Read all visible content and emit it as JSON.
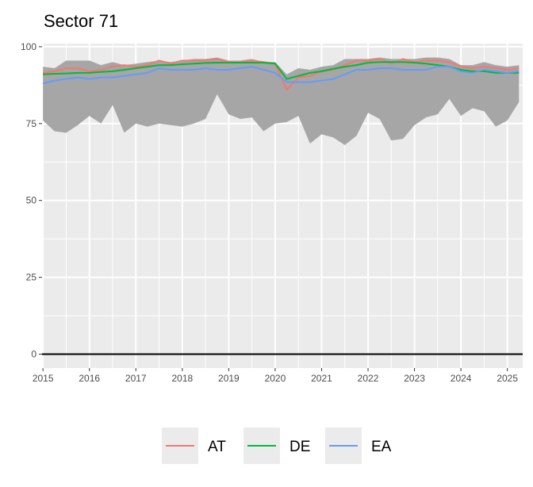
{
  "chart_data": {
    "type": "line",
    "title": "Sector 71",
    "xlabel": "",
    "ylabel": "",
    "xlim": [
      2014.98,
      2025.33
    ],
    "ylim": [
      -4.5,
      101
    ],
    "x_ticks": [
      2015,
      2016,
      2017,
      2018,
      2019,
      2020,
      2021,
      2022,
      2023,
      2024,
      2025
    ],
    "x_tick_labels": [
      "2015",
      "2016",
      "2017",
      "2018",
      "2019",
      "2020",
      "2021",
      "2022",
      "2023",
      "2024",
      "2025"
    ],
    "y_ticks": [
      0,
      25,
      50,
      75,
      100
    ],
    "y_tick_labels": [
      "0",
      "25",
      "50",
      "75",
      "100"
    ],
    "grid": true,
    "legend_position": "bottom",
    "reference_line_y": 0,
    "band": {
      "x": [
        2015.0,
        2015.25,
        2015.5,
        2015.75,
        2016.0,
        2016.25,
        2016.5,
        2016.75,
        2017.0,
        2017.25,
        2017.5,
        2017.75,
        2018.0,
        2018.25,
        2018.5,
        2018.75,
        2019.0,
        2019.25,
        2019.5,
        2019.75,
        2020.0,
        2020.25,
        2020.5,
        2020.75,
        2021.0,
        2021.25,
        2021.5,
        2021.75,
        2022.0,
        2022.25,
        2022.5,
        2022.75,
        2023.0,
        2023.25,
        2023.5,
        2023.75,
        2024.0,
        2024.25,
        2024.5,
        2024.75,
        2025.0,
        2025.25
      ],
      "lower": [
        76,
        72.5,
        72,
        74.5,
        77.5,
        75,
        81,
        72,
        75,
        74,
        75,
        74.5,
        74,
        75,
        76.5,
        84.5,
        78,
        76.5,
        77,
        72.5,
        75,
        75.5,
        77.5,
        68.5,
        71.5,
        70.5,
        68,
        71,
        78.5,
        76.5,
        69.5,
        70,
        74.5,
        77,
        78,
        83,
        77.5,
        80,
        79,
        74,
        76,
        82
      ],
      "upper": [
        93.5,
        93,
        95.5,
        95.5,
        95.5,
        94,
        95,
        94,
        94.5,
        95,
        95.5,
        95,
        95.5,
        96,
        96,
        96.5,
        95.5,
        95.5,
        96,
        95,
        95,
        91,
        93,
        92.5,
        93.5,
        94,
        96,
        96,
        96,
        96.5,
        96,
        96,
        96,
        96.5,
        96.5,
        96,
        94,
        94,
        95,
        94,
        93.5,
        94
      ]
    },
    "series": [
      {
        "name": "AT",
        "color": "#F8766D",
        "x": [
          2015.0,
          2015.25,
          2015.5,
          2015.75,
          2016.0,
          2016.25,
          2016.5,
          2016.75,
          2017.0,
          2017.25,
          2017.5,
          2017.75,
          2018.0,
          2018.25,
          2018.5,
          2018.75,
          2019.0,
          2019.25,
          2019.5,
          2019.75,
          2020.0,
          2020.25,
          2020.5,
          2020.75,
          2021.0,
          2021.25,
          2021.5,
          2021.75,
          2022.0,
          2022.25,
          2022.5,
          2022.75,
          2023.0,
          2023.25,
          2023.5,
          2023.75,
          2024.0,
          2024.25,
          2024.5,
          2024.75,
          2025.0,
          2025.25
        ],
        "values": [
          91.5,
          92,
          93,
          93,
          92,
          92.5,
          93.5,
          94,
          93.5,
          94,
          95.5,
          94.5,
          95.5,
          95.5,
          95.5,
          96,
          95,
          95,
          95.5,
          95,
          94.5,
          86,
          90,
          90.5,
          92,
          92.5,
          94,
          95.5,
          95.5,
          96,
          94.5,
          96,
          95,
          95.5,
          95.5,
          95,
          93.5,
          93,
          93.5,
          93,
          92.5,
          93
        ]
      },
      {
        "name": "DE",
        "color": "#00BA38",
        "x": [
          2015.0,
          2015.25,
          2015.5,
          2015.75,
          2016.0,
          2016.25,
          2016.5,
          2016.75,
          2017.0,
          2017.25,
          2017.5,
          2017.75,
          2018.0,
          2018.25,
          2018.5,
          2018.75,
          2019.0,
          2019.25,
          2019.5,
          2019.75,
          2020.0,
          2020.25,
          2020.5,
          2020.75,
          2021.0,
          2021.25,
          2021.5,
          2021.75,
          2022.0,
          2022.25,
          2022.5,
          2022.75,
          2023.0,
          2023.25,
          2023.5,
          2023.75,
          2024.0,
          2024.25,
          2024.5,
          2024.75,
          2025.0,
          2025.25
        ],
        "values": [
          91,
          91.2,
          91.3,
          91.5,
          91.5,
          91.8,
          92,
          92.5,
          93,
          93.5,
          94,
          94,
          94.3,
          94.5,
          94.7,
          94.8,
          94.8,
          94.8,
          94.8,
          94.8,
          94.5,
          89.5,
          90.5,
          91.5,
          92,
          92.8,
          93.5,
          94,
          94.8,
          95,
          95,
          95,
          94.8,
          94.5,
          94,
          93.5,
          92.5,
          92,
          92,
          91.5,
          91.5,
          91.5
        ]
      },
      {
        "name": "EA",
        "color": "#619CFF",
        "x": [
          2015.0,
          2015.25,
          2015.5,
          2015.75,
          2016.0,
          2016.25,
          2016.5,
          2016.75,
          2017.0,
          2017.25,
          2017.5,
          2017.75,
          2018.0,
          2018.25,
          2018.5,
          2018.75,
          2019.0,
          2019.25,
          2019.5,
          2019.75,
          2020.0,
          2020.25,
          2020.5,
          2020.75,
          2021.0,
          2021.25,
          2021.5,
          2021.75,
          2022.0,
          2022.25,
          2022.5,
          2022.75,
          2023.0,
          2023.25,
          2023.5,
          2023.75,
          2024.0,
          2024.25,
          2024.5,
          2024.75,
          2025.0,
          2025.25
        ],
        "values": [
          88,
          89,
          89.5,
          90,
          89.5,
          90,
          90,
          90.5,
          91,
          91.5,
          93,
          92.5,
          92.5,
          92.5,
          93,
          92.5,
          92.5,
          93,
          93.5,
          92.5,
          91.5,
          88.5,
          88.5,
          88.5,
          89,
          89.5,
          91,
          92.5,
          92.5,
          93,
          93,
          92.5,
          92.5,
          92.5,
          93.5,
          93.5,
          92,
          91.5,
          92.5,
          92,
          91.5,
          92
        ]
      }
    ]
  }
}
